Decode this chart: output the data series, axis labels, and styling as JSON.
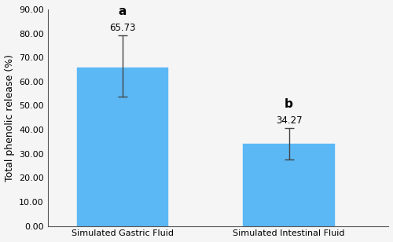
{
  "categories": [
    "Simulated Gastric Fluid",
    "Simulated Intestinal Fluid"
  ],
  "values": [
    65.73,
    34.27
  ],
  "errors_upper": [
    13.5,
    6.5
  ],
  "errors_lower": [
    12.0,
    6.5
  ],
  "bar_color": "#5BB8F5",
  "bar_edge_color": "#5BB8F5",
  "ylabel": "Total phenolic release (%)",
  "ylim": [
    0,
    90
  ],
  "yticks": [
    0.0,
    10.0,
    20.0,
    30.0,
    40.0,
    50.0,
    60.0,
    70.0,
    80.0,
    90.0
  ],
  "significance_labels": [
    "a",
    "b"
  ],
  "value_labels": [
    "65.73",
    "34.27"
  ],
  "bar_width": 0.55,
  "background_color": "#f5f5f5",
  "error_capsize": 4,
  "error_color": "#444444",
  "label_fontsize": 8.5,
  "tick_fontsize": 8,
  "ylabel_fontsize": 9,
  "sig_fontsize": 11,
  "xtick_fontsize": 8
}
